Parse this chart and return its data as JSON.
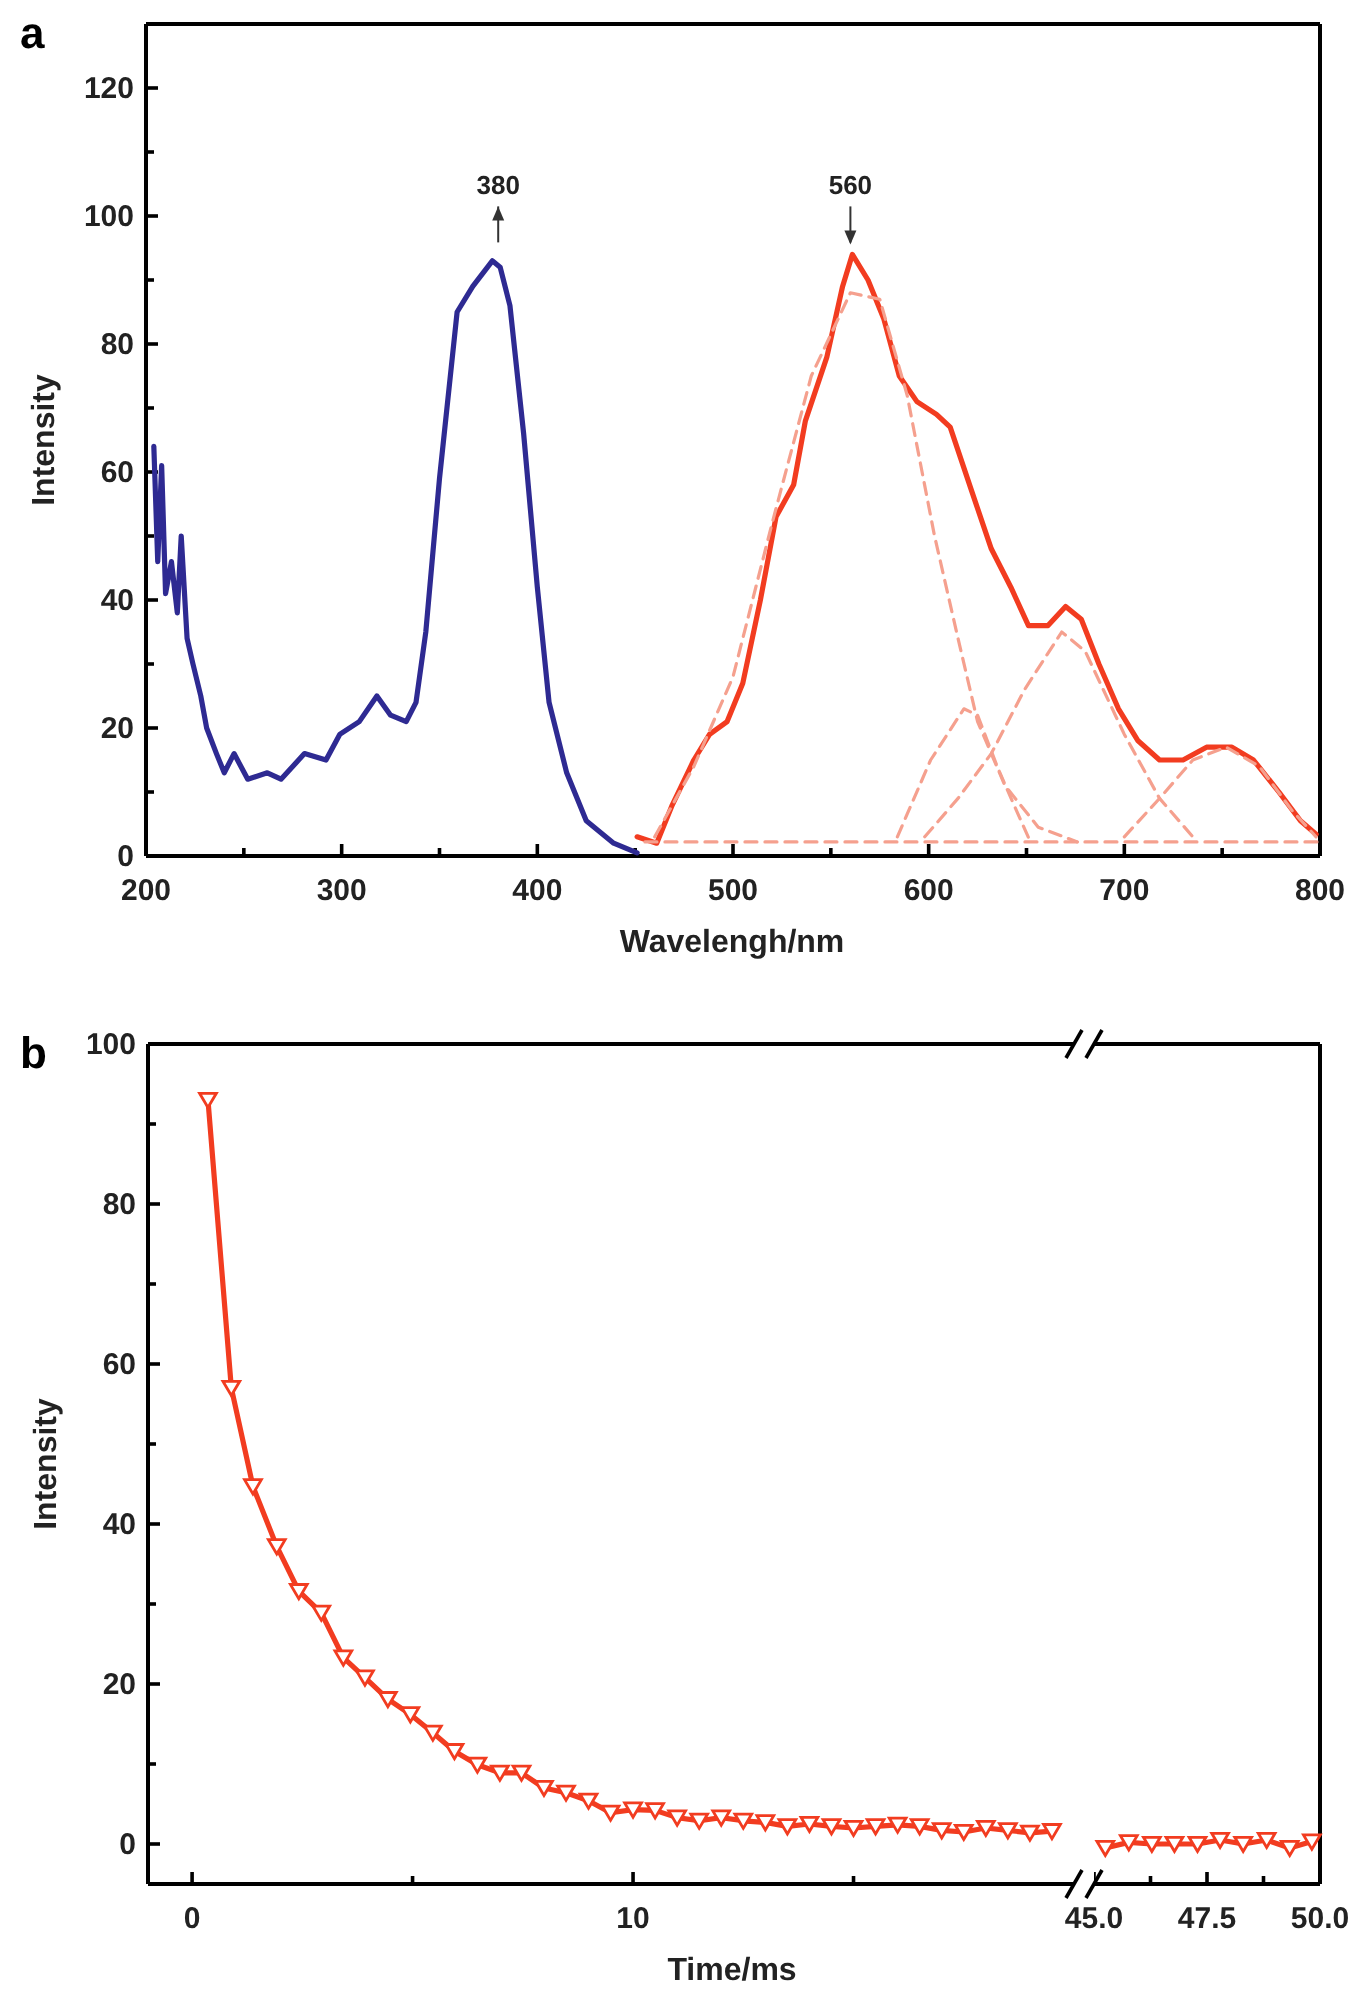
{
  "chart_data": [
    {
      "type": "line",
      "title": "a",
      "xlabel": "Wavelengh/nm",
      "ylabel": "Intensity",
      "xlim": [
        200,
        800
      ],
      "ylim": [
        0,
        130
      ],
      "xticks": [
        200,
        {
          "value": 250,
          "label": null
        },
        300,
        {
          "value": 350,
          "label": null
        },
        400,
        {
          "value": 450,
          "label": null
        },
        500,
        {
          "value": 550,
          "label": null
        },
        600,
        {
          "value": 650,
          "label": null
        },
        700,
        {
          "value": 750,
          "label": null
        },
        800
      ],
      "yticks": [
        0,
        {
          "value": 10,
          "label": null
        },
        20,
        {
          "value": 30,
          "label": null
        },
        40,
        {
          "value": 50,
          "label": null
        },
        60,
        {
          "value": 70,
          "label": null
        },
        80,
        {
          "value": 90,
          "label": null
        },
        100,
        {
          "value": 110,
          "label": null
        },
        120
      ],
      "annotations": [
        {
          "text": "380",
          "x": 380,
          "y": 94
        },
        {
          "text": "560",
          "x": 560,
          "y": 94
        }
      ],
      "series": [
        {
          "color": "#2e2a92",
          "line_style": "solid",
          "x": [
            204,
            206,
            208,
            210,
            213,
            216,
            218,
            221,
            224,
            228,
            231,
            236,
            240,
            245,
            252,
            262,
            269,
            281,
            292,
            299,
            309,
            318,
            325,
            333,
            338,
            343,
            350,
            359,
            367,
            377,
            381,
            386,
            393,
            400,
            406,
            415,
            425,
            439,
            451
          ],
          "values": [
            64,
            46,
            61,
            41,
            46,
            38,
            50,
            34,
            30,
            25,
            20,
            16,
            13,
            16,
            12,
            13,
            12,
            16,
            15,
            19,
            21,
            25,
            22,
            21,
            24,
            35,
            59,
            85,
            89,
            93,
            92,
            86,
            66,
            42,
            24,
            13,
            5.5,
            2,
            0.5
          ]
        },
        {
          "color": "#f23c20",
          "line_style": "solid",
          "x": [
            451,
            461,
            469,
            480,
            488,
            497,
            505,
            514,
            522,
            531,
            537,
            548,
            556,
            561,
            569,
            577,
            585,
            594,
            604,
            611,
            622,
            632,
            642,
            651,
            661,
            670,
            678,
            687,
            697,
            707,
            718,
            730,
            742,
            755,
            766,
            779,
            790,
            798
          ],
          "values": [
            3,
            2,
            8,
            15,
            19,
            21,
            27,
            40,
            53,
            58,
            68,
            78,
            89,
            94,
            90,
            84,
            75,
            71,
            69,
            67,
            57,
            48,
            42,
            36,
            36,
            39,
            37,
            30,
            23,
            18,
            15,
            15,
            17,
            17,
            15,
            10,
            5.5,
            3.4
          ]
        },
        {
          "color": "#f5a08e",
          "line_style": "dashed",
          "x": [
            460,
            480,
            500,
            520,
            540,
            560,
            575,
            589,
            603,
            615,
            625,
            639,
            656,
            676
          ],
          "values": [
            3,
            14,
            28,
            52,
            75,
            88,
            87,
            72,
            50,
            34,
            21,
            11,
            4.5,
            2.2
          ]
        },
        {
          "color": "#f5a08e",
          "line_style": "dashed",
          "x": [
            584,
            601,
            618,
            625,
            635,
            645,
            652
          ],
          "values": [
            3,
            15,
            23,
            22,
            14,
            7,
            2.2
          ]
        },
        {
          "color": "#f5a08e",
          "line_style": "dashed",
          "x": [
            598,
            615,
            632,
            649,
            668,
            680,
            700,
            718,
            735
          ],
          "values": [
            3,
            9,
            16,
            26,
            35,
            32,
            19,
            9,
            3
          ]
        },
        {
          "color": "#f5a08e",
          "line_style": "dashed",
          "x": [
            700,
            718,
            735,
            752,
            769,
            786,
            798
          ],
          "values": [
            3,
            9,
            15,
            17,
            14,
            7,
            3
          ]
        },
        {
          "color": "#f5a08e",
          "line_style": "dashed",
          "x": [
            455,
            800
          ],
          "values": [
            2.2,
            2.2
          ]
        }
      ]
    },
    {
      "type": "line",
      "title": "b",
      "xlabel": "Time/ms",
      "ylabel": "Intensity",
      "xlim": [
        -1,
        20
      ],
      "ylim": [
        -5,
        100
      ],
      "marker": "triangle",
      "xticks": [
        0,
        {
          "value": 5,
          "label": null
        },
        10,
        {
          "value": 15,
          "label": null
        }
      ],
      "yticks": [
        0,
        {
          "value": 10,
          "label": null
        },
        20,
        {
          "value": 30,
          "label": null
        },
        40,
        {
          "value": 50,
          "label": null
        },
        60,
        {
          "value": 70,
          "label": null
        },
        80,
        {
          "value": 90,
          "label": null
        },
        100
      ],
      "series": [
        {
          "color": "#f23c20",
          "x": [
            0.36,
            0.89,
            1.38,
            1.92,
            2.42,
            2.93,
            3.43,
            3.92,
            4.44,
            4.95,
            5.46,
            5.95,
            6.47,
            6.98,
            7.47,
            7.98,
            8.48,
            8.99,
            9.49,
            10,
            10.5,
            11,
            11.5,
            12,
            12.5,
            13,
            13.5,
            14,
            14.5,
            15,
            15.5,
            16,
            16.5,
            17,
            17.5,
            18,
            18.5,
            19,
            19.5
          ],
          "values": [
            93,
            57,
            44.7,
            37.2,
            31.6,
            28.9,
            23.3,
            20.8,
            18.1,
            16.2,
            13.9,
            11.6,
            9.9,
            8.9,
            8.9,
            7,
            6.4,
            5.4,
            3.9,
            4.3,
            4.2,
            3.3,
            2.9,
            3.3,
            2.9,
            2.7,
            2.2,
            2.5,
            2.2,
            2,
            2.2,
            2.4,
            2.2,
            1.7,
            1.5,
            2,
            1.7,
            1.4,
            1.6
          ]
        }
      ]
    },
    {
      "type": "line",
      "xlim": [
        45,
        50
      ],
      "ylim": [
        -5,
        100
      ],
      "marker": "triangle",
      "tick_labels": "x",
      "xticks": [
        {
          "value": 45,
          "label": "45.0"
        },
        {
          "value": 46.25,
          "label": null
        },
        {
          "value": 47.5,
          "label": "47.5"
        },
        {
          "value": 48.75,
          "label": null
        },
        {
          "value": 50,
          "label": "50.0"
        }
      ],
      "series": [
        {
          "color": "#f23c20",
          "x": [
            45.25,
            45.77,
            46.28,
            46.78,
            47.29,
            47.79,
            48.3,
            48.82,
            49.33,
            49.82
          ],
          "values": [
            -0.5,
            0.2,
            0,
            0,
            0,
            0.5,
            0,
            0.5,
            -0.5,
            0.3
          ]
        }
      ]
    }
  ]
}
